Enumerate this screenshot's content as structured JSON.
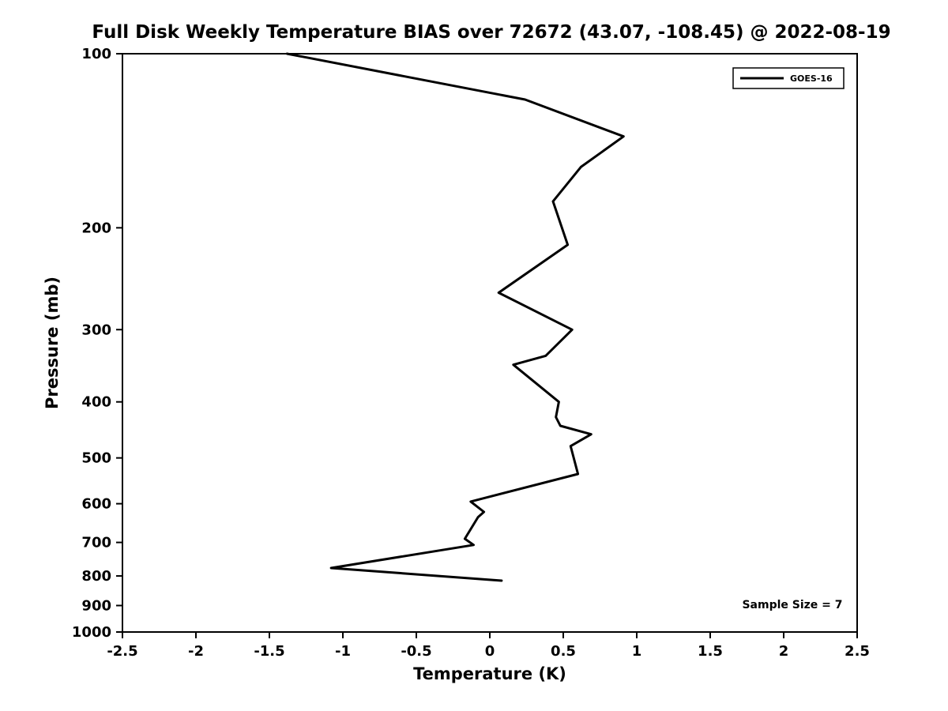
{
  "chart_data": {
    "type": "line",
    "title": "Full Disk Weekly Temperature BIAS over 72672 (43.07, -108.45) @ 2022-08-19",
    "xlabel": "Temperature (K)",
    "ylabel": "Pressure (mb)",
    "xlim": [
      -2.5,
      2.5
    ],
    "ylim": [
      100,
      1000
    ],
    "yscale": "log",
    "y_inverted": true,
    "grid": false,
    "line_color": "#000000",
    "x_ticks": [
      -2.5,
      -2,
      -1.5,
      -1,
      -0.5,
      0,
      0.5,
      1,
      1.5,
      2,
      2.5
    ],
    "x_tick_labels": [
      "-2.5",
      "-2",
      "-1.5",
      "-1",
      "-0.5",
      "0",
      "0.5",
      "1",
      "1.5",
      "2",
      "2.5"
    ],
    "y_ticks": [
      100,
      200,
      300,
      400,
      500,
      600,
      700,
      800,
      900,
      1000
    ],
    "y_tick_labels": [
      "100",
      "200",
      "300",
      "400",
      "500",
      "600",
      "700",
      "800",
      "900",
      "1000"
    ],
    "legend": {
      "position": "top-right",
      "entries": [
        {
          "label": "GOES-16",
          "color": "#000000",
          "line_width": 3
        }
      ]
    },
    "annotation": "Sample Size = 7",
    "series": [
      {
        "name": "GOES-16",
        "color": "#000000",
        "points": [
          {
            "bias": -1.38,
            "pressure": 100
          },
          {
            "bias": 0.24,
            "pressure": 120
          },
          {
            "bias": 0.91,
            "pressure": 139
          },
          {
            "bias": 0.62,
            "pressure": 157
          },
          {
            "bias": 0.43,
            "pressure": 180
          },
          {
            "bias": 0.53,
            "pressure": 214
          },
          {
            "bias": 0.06,
            "pressure": 259
          },
          {
            "bias": 0.56,
            "pressure": 300
          },
          {
            "bias": 0.38,
            "pressure": 333
          },
          {
            "bias": 0.16,
            "pressure": 345
          },
          {
            "bias": 0.47,
            "pressure": 400
          },
          {
            "bias": 0.45,
            "pressure": 425
          },
          {
            "bias": 0.48,
            "pressure": 440
          },
          {
            "bias": 0.69,
            "pressure": 455
          },
          {
            "bias": 0.55,
            "pressure": 477
          },
          {
            "bias": 0.6,
            "pressure": 533
          },
          {
            "bias": -0.13,
            "pressure": 595
          },
          {
            "bias": -0.04,
            "pressure": 620
          },
          {
            "bias": -0.08,
            "pressure": 633
          },
          {
            "bias": -0.17,
            "pressure": 690
          },
          {
            "bias": -0.11,
            "pressure": 707
          },
          {
            "bias": -1.08,
            "pressure": 775
          },
          {
            "bias": 0.08,
            "pressure": 815
          }
        ]
      }
    ]
  }
}
